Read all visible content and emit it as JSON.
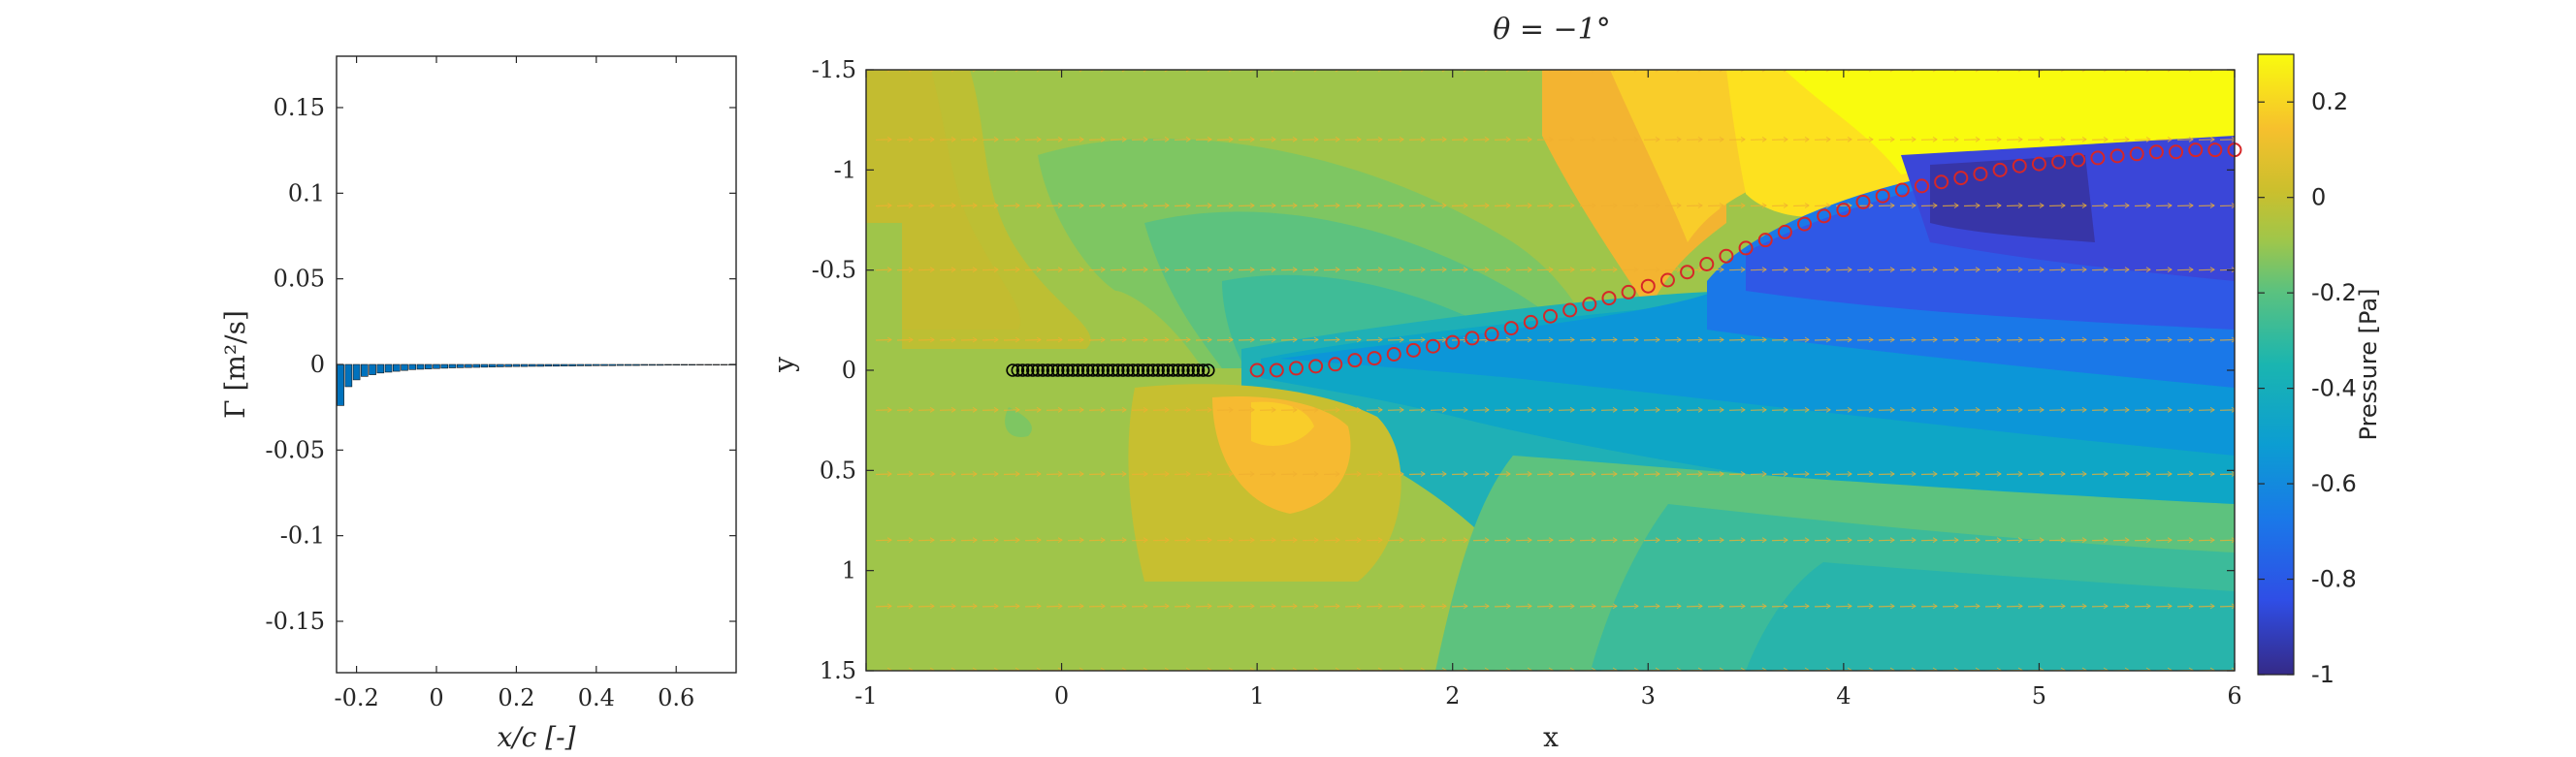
{
  "chart_data": [
    {
      "type": "bar",
      "xlabel": "x/c [-]",
      "ylabel": "Γ [m²/s]",
      "xlim": [
        -0.25,
        0.75
      ],
      "ylim": [
        -0.18,
        0.18
      ],
      "xticks": [
        "-0.2",
        "0",
        "0.2",
        "0.4",
        "0.6"
      ],
      "xtick_values": [
        -0.2,
        0,
        0.2,
        0.4,
        0.6
      ],
      "yticks": [
        "-0.15",
        "-0.1",
        "-0.05",
        "0",
        "0.05",
        "0.1",
        "0.15"
      ],
      "ytick_values": [
        -0.15,
        -0.1,
        -0.05,
        0,
        0.05,
        0.1,
        0.15
      ],
      "bar_color": "#0072bd",
      "x": [
        -0.24,
        -0.22,
        -0.2,
        -0.18,
        -0.16,
        -0.14,
        -0.12,
        -0.1,
        -0.08,
        -0.06,
        -0.04,
        -0.02,
        0.0,
        0.02,
        0.04,
        0.06,
        0.08,
        0.1,
        0.12,
        0.14,
        0.16,
        0.18,
        0.2,
        0.22,
        0.24,
        0.26,
        0.28,
        0.3,
        0.32,
        0.34,
        0.36,
        0.38,
        0.4,
        0.42,
        0.44,
        0.46,
        0.48,
        0.5,
        0.52,
        0.54,
        0.56,
        0.58,
        0.6,
        0.62,
        0.64,
        0.66,
        0.68,
        0.7,
        0.72,
        0.74
      ],
      "values": [
        -0.024,
        -0.013,
        -0.009,
        -0.007,
        -0.006,
        -0.005,
        -0.0045,
        -0.004,
        -0.0035,
        -0.003,
        -0.0028,
        -0.0026,
        -0.0024,
        -0.0022,
        -0.002,
        -0.0019,
        -0.0018,
        -0.0017,
        -0.0016,
        -0.0015,
        -0.0014,
        -0.0013,
        -0.0012,
        -0.0012,
        -0.0011,
        -0.0011,
        -0.001,
        -0.001,
        -0.0009,
        -0.0009,
        -0.0008,
        -0.0008,
        -0.0007,
        -0.0007,
        -0.0007,
        -0.0006,
        -0.0006,
        -0.0006,
        -0.0005,
        -0.0005,
        -0.0005,
        -0.0004,
        -0.0004,
        -0.0004,
        -0.0004,
        -0.0003,
        -0.0003,
        -0.0003,
        -0.0003,
        -0.0002
      ]
    },
    {
      "type": "heatmap",
      "title": "θ = −1°",
      "xlabel": "x",
      "ylabel": "y",
      "xlim": [
        -1,
        6
      ],
      "ylim": [
        -1.5,
        1.5
      ],
      "y_reversed": true,
      "xticks": [
        "-1",
        "0",
        "1",
        "2",
        "3",
        "4",
        "5",
        "6"
      ],
      "xtick_values": [
        -1,
        0,
        1,
        2,
        3,
        4,
        5,
        6
      ],
      "yticks": [
        "-1.5",
        "-1",
        "-0.5",
        "0",
        "0.5",
        "1",
        "1.5"
      ],
      "ytick_values": [
        -1.5,
        -1,
        -0.5,
        0,
        0.5,
        1,
        1.5
      ],
      "colorbar": {
        "label": "Pressure [Pa]",
        "range": [
          -1,
          0.3
        ],
        "ticks": [
          "0.2",
          "0",
          "-0.2",
          "-0.4",
          "-0.6",
          "-0.8",
          "-1"
        ],
        "tick_values": [
          0.2,
          0,
          -0.2,
          -0.4,
          -0.6,
          -0.8,
          -1
        ]
      },
      "body_markers": {
        "color": "#000000",
        "x_start": -0.25,
        "x_end": 0.75,
        "count": 40,
        "y": 0
      },
      "wake_markers": {
        "color": "#d62728",
        "x": [
          1.0,
          1.1,
          1.2,
          1.3,
          1.4,
          1.5,
          1.6,
          1.7,
          1.8,
          1.9,
          2.0,
          2.1,
          2.2,
          2.3,
          2.4,
          2.5,
          2.6,
          2.7,
          2.8,
          2.9,
          3.0,
          3.1,
          3.2,
          3.3,
          3.4,
          3.5,
          3.6,
          3.7,
          3.8,
          3.9,
          4.0,
          4.1,
          4.2,
          4.3,
          4.4,
          4.5,
          4.6,
          4.7,
          4.8,
          4.9,
          5.0,
          5.1,
          5.2,
          5.3,
          5.4,
          5.5,
          5.6,
          5.7,
          5.8,
          5.9,
          6.0
        ],
        "y": [
          0.0,
          0.0,
          -0.01,
          -0.02,
          -0.03,
          -0.05,
          -0.06,
          -0.08,
          -0.1,
          -0.12,
          -0.14,
          -0.16,
          -0.18,
          -0.21,
          -0.24,
          -0.27,
          -0.3,
          -0.33,
          -0.36,
          -0.39,
          -0.42,
          -0.45,
          -0.49,
          -0.53,
          -0.57,
          -0.61,
          -0.65,
          -0.69,
          -0.73,
          -0.77,
          -0.8,
          -0.84,
          -0.87,
          -0.9,
          -0.92,
          -0.94,
          -0.96,
          -0.98,
          -1.0,
          -1.02,
          -1.03,
          -1.04,
          -1.05,
          -1.06,
          -1.07,
          -1.08,
          -1.09,
          -1.09,
          -1.1,
          -1.1,
          -1.1
        ]
      },
      "arrow_rows_y": [
        -1.5,
        -1.15,
        -0.82,
        -0.5,
        -0.15,
        0.2,
        0.52,
        0.85,
        1.18,
        1.5
      ],
      "arrow_color": "#f0b030"
    }
  ]
}
